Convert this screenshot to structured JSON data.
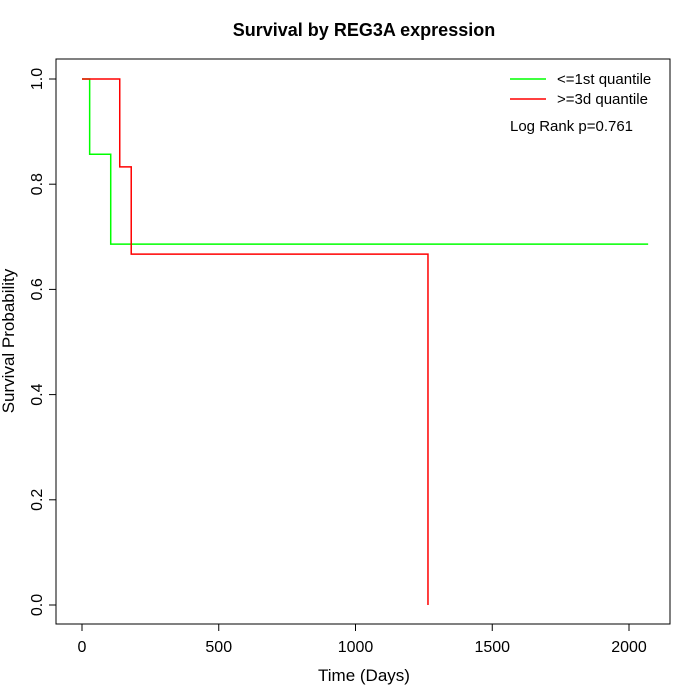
{
  "chart_data": {
    "type": "line",
    "step": true,
    "title": "Survival by REG3A expression",
    "xlabel": "Time (Days)",
    "ylabel": "Survival Probability",
    "xlim": [
      0,
      2070
    ],
    "ylim": [
      0,
      1.0
    ],
    "x_ticks": [
      0,
      500,
      1000,
      1500,
      2000
    ],
    "y_ticks": [
      0.0,
      0.2,
      0.4,
      0.6,
      0.8,
      1.0
    ],
    "x_tick_labels": [
      "0",
      "500",
      "1000",
      "1500",
      "2000"
    ],
    "y_tick_labels": [
      "0.0",
      "0.2",
      "0.4",
      "0.6",
      "0.8",
      "1.0"
    ],
    "grid": false,
    "legend_position": "top-right",
    "series": [
      {
        "name": "<=1st quantile",
        "color": "#00ff00",
        "points": [
          {
            "x": 0,
            "y": 1.0
          },
          {
            "x": 28,
            "y": 0.857
          },
          {
            "x": 105,
            "y": 0.686
          },
          {
            "x": 2070,
            "y": 0.686
          }
        ]
      },
      {
        "name": ">=3d quantile",
        "color": "#ff0000",
        "points": [
          {
            "x": 0,
            "y": 1.0
          },
          {
            "x": 138,
            "y": 0.833
          },
          {
            "x": 180,
            "y": 0.667
          },
          {
            "x": 1265,
            "y": 0.0
          }
        ]
      }
    ],
    "annotation": "Log Rank p=0.761"
  }
}
